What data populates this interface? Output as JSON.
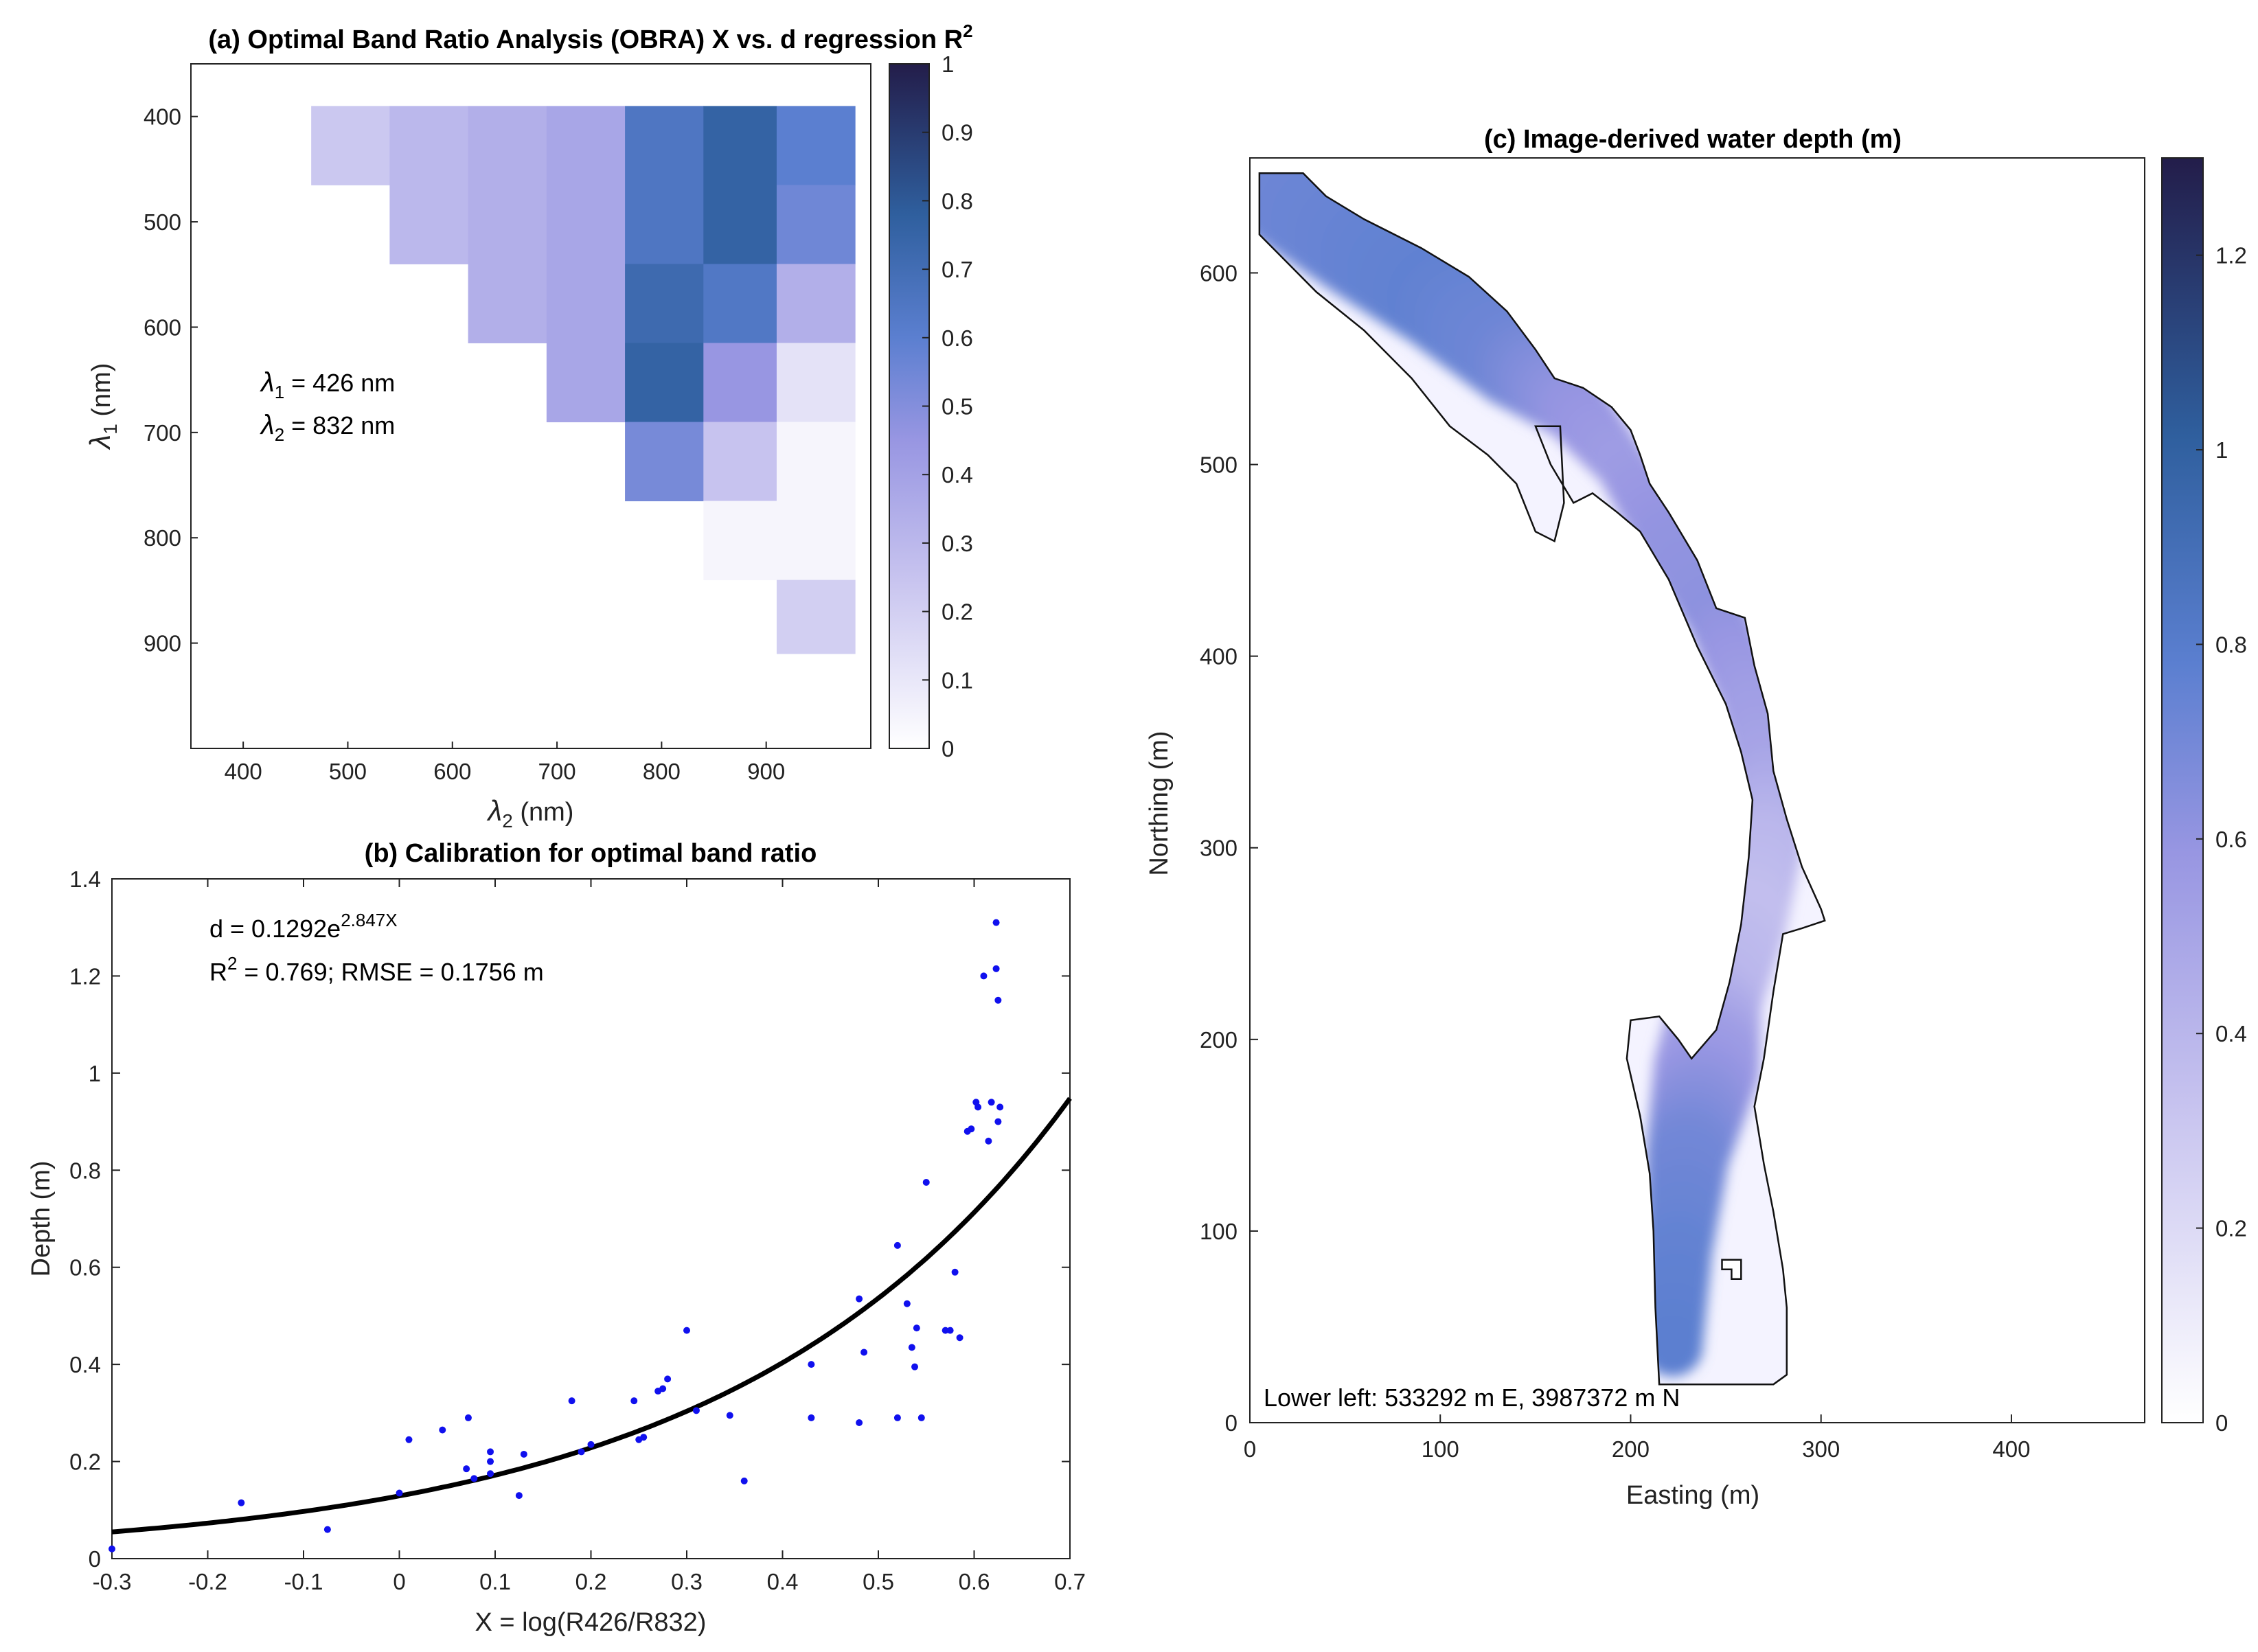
{
  "chart_data": [
    {
      "id": "a",
      "type": "heatmap",
      "title": "(a) Optimal Band Ratio Analysis (OBRA) X vs. d regression R",
      "title_sup": "2",
      "xlabel_sym": "λ",
      "xlabel_sub": "2",
      "xlabel_unit": " (nm)",
      "ylabel_sym": "λ",
      "ylabel_sub": "1",
      "ylabel_unit": " (nm)",
      "xlim": [
        350,
        1000
      ],
      "ylim": [
        350,
        1000
      ],
      "xticks": [
        400,
        500,
        600,
        700,
        800,
        900
      ],
      "yticks": [
        400,
        500,
        600,
        700,
        800,
        900
      ],
      "x_centers": [
        503,
        578,
        653,
        728,
        803,
        878,
        948
      ],
      "y_centers": [
        428,
        503,
        578,
        653,
        728,
        803,
        873
      ],
      "x_edges": [
        465,
        540,
        615,
        690,
        765,
        840,
        910,
        985
      ],
      "y_edges": [
        390,
        465,
        540,
        615,
        690,
        765,
        840,
        910
      ],
      "values": [
        [
          0.23,
          0.3,
          0.34,
          0.38,
          0.65,
          0.76,
          0.6
        ],
        [
          null,
          0.3,
          0.34,
          0.38,
          0.65,
          0.76,
          0.55
        ],
        [
          null,
          null,
          0.34,
          0.38,
          0.72,
          0.64,
          0.34
        ],
        [
          null,
          null,
          null,
          0.38,
          0.76,
          0.45,
          0.12
        ],
        [
          null,
          null,
          null,
          null,
          0.53,
          0.25,
          0.04
        ],
        [
          null,
          null,
          null,
          null,
          null,
          0.04,
          0.04
        ],
        [
          null,
          null,
          null,
          null,
          null,
          null,
          0.2
        ]
      ],
      "annotations": [
        {
          "sym": "λ",
          "sub": "1",
          "text": " = 426 nm"
        },
        {
          "sym": "λ",
          "sub": "2",
          "text": " = 832 nm"
        }
      ],
      "colorbar": {
        "ticks": [
          "0",
          "0.1",
          "0.2",
          "0.3",
          "0.4",
          "0.5",
          "0.6",
          "0.7",
          "0.8",
          "0.9",
          "1"
        ],
        "lim": [
          0,
          1
        ]
      }
    },
    {
      "id": "b",
      "type": "scatter",
      "title": "(b) Calibration for optimal band ratio",
      "xlabel": "X = log(R426/R832)",
      "ylabel": "Depth (m)",
      "xlim": [
        -0.3,
        0.7
      ],
      "ylim": [
        0,
        1.4
      ],
      "xticks": [
        "-0.3",
        "-0.2",
        "-0.1",
        "0",
        "0.1",
        "0.2",
        "0.3",
        "0.4",
        "0.5",
        "0.6",
        "0.7"
      ],
      "yticks": [
        "0",
        "0.2",
        "0.4",
        "0.6",
        "0.8",
        "1",
        "1.2",
        "1.4"
      ],
      "fit": {
        "a": 0.1292,
        "b": 2.847
      },
      "annotation_eq": "d = 0.1292e",
      "annotation_eq_sup": "2.847X",
      "annotation_r2_prefix": "R",
      "annotation_r2_sup": "2",
      "annotation_r2_text": " = 0.769; RMSE = 0.1756 m",
      "points": [
        [
          -0.3,
          0.02
        ],
        [
          -0.165,
          0.115
        ],
        [
          -0.075,
          0.06
        ],
        [
          0.0,
          0.135
        ],
        [
          0.01,
          0.245
        ],
        [
          0.045,
          0.265
        ],
        [
          0.07,
          0.185
        ],
        [
          0.072,
          0.29
        ],
        [
          0.078,
          0.165
        ],
        [
          0.095,
          0.22
        ],
        [
          0.095,
          0.2
        ],
        [
          0.095,
          0.175
        ],
        [
          0.125,
          0.13
        ],
        [
          0.13,
          0.215
        ],
        [
          0.18,
          0.325
        ],
        [
          0.19,
          0.22
        ],
        [
          0.2,
          0.235
        ],
        [
          0.245,
          0.325
        ],
        [
          0.25,
          0.245
        ],
        [
          0.255,
          0.25
        ],
        [
          0.27,
          0.345
        ],
        [
          0.275,
          0.35
        ],
        [
          0.28,
          0.37
        ],
        [
          0.3,
          0.47
        ],
        [
          0.31,
          0.305
        ],
        [
          0.345,
          0.295
        ],
        [
          0.36,
          0.16
        ],
        [
          0.43,
          0.4
        ],
        [
          0.43,
          0.29
        ],
        [
          0.48,
          0.28
        ],
        [
          0.48,
          0.535
        ],
        [
          0.485,
          0.425
        ],
        [
          0.52,
          0.645
        ],
        [
          0.52,
          0.29
        ],
        [
          0.53,
          0.525
        ],
        [
          0.535,
          0.435
        ],
        [
          0.538,
          0.395
        ],
        [
          0.54,
          0.475
        ],
        [
          0.545,
          0.29
        ],
        [
          0.55,
          0.775
        ],
        [
          0.57,
          0.47
        ],
        [
          0.575,
          0.47
        ],
        [
          0.58,
          0.59
        ],
        [
          0.585,
          0.455
        ],
        [
          0.593,
          0.88
        ],
        [
          0.597,
          0.885
        ],
        [
          0.602,
          0.94
        ],
        [
          0.604,
          0.93
        ],
        [
          0.61,
          1.2
        ],
        [
          0.615,
          0.86
        ],
        [
          0.618,
          0.94
        ],
        [
          0.623,
          1.31
        ],
        [
          0.623,
          1.215
        ],
        [
          0.625,
          1.15
        ],
        [
          0.625,
          0.9
        ],
        [
          0.627,
          0.93
        ]
      ]
    },
    {
      "id": "c",
      "type": "heatmap",
      "title": "(c) Image-derived water depth (m)",
      "xlabel": "Easting (m)",
      "ylabel": "Northing (m)",
      "xlim": [
        0,
        470
      ],
      "ylim": [
        0,
        660
      ],
      "xticks": [
        "0",
        "100",
        "200",
        "300",
        "400"
      ],
      "yticks": [
        "0",
        "100",
        "200",
        "300",
        "400",
        "500",
        "600"
      ],
      "corner_note": "Lower left: 533292 m E, 3987372 m N",
      "colorbar": {
        "ticks": [
          "0",
          "0.2",
          "0.4",
          "0.6",
          "0.8",
          "1",
          "1.2"
        ],
        "lim": [
          0,
          1.3
        ]
      },
      "channel_centerline_depth": [
        {
          "e": 20,
          "n": 640,
          "w": 28,
          "d": 0.72
        },
        {
          "e": 60,
          "n": 615,
          "w": 30,
          "d": 0.74
        },
        {
          "e": 100,
          "n": 587,
          "w": 28,
          "d": 0.76
        },
        {
          "e": 140,
          "n": 555,
          "w": 26,
          "d": 0.72
        },
        {
          "e": 170,
          "n": 530,
          "w": 18,
          "d": 0.6
        },
        {
          "e": 195,
          "n": 500,
          "w": 14,
          "d": 0.55
        },
        {
          "e": 220,
          "n": 460,
          "w": 16,
          "d": 0.6
        },
        {
          "e": 245,
          "n": 420,
          "w": 16,
          "d": 0.62
        },
        {
          "e": 262,
          "n": 380,
          "w": 16,
          "d": 0.55
        },
        {
          "e": 272,
          "n": 340,
          "w": 16,
          "d": 0.5
        },
        {
          "e": 270,
          "n": 300,
          "w": 20,
          "d": 0.4
        },
        {
          "e": 260,
          "n": 260,
          "w": 22,
          "d": 0.35
        },
        {
          "e": 245,
          "n": 220,
          "w": 24,
          "d": 0.4
        },
        {
          "e": 240,
          "n": 185,
          "w": 28,
          "d": 0.55
        },
        {
          "e": 230,
          "n": 140,
          "w": 22,
          "d": 0.7
        },
        {
          "e": 225,
          "n": 90,
          "w": 18,
          "d": 0.75
        },
        {
          "e": 222,
          "n": 40,
          "w": 16,
          "d": 0.78
        }
      ]
    }
  ]
}
